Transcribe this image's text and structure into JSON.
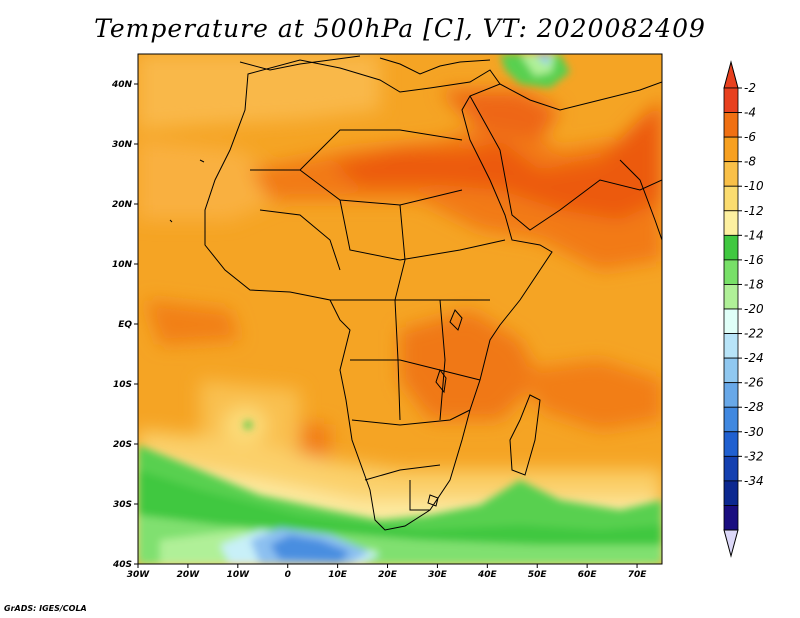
{
  "title": "Temperature at 500hPa [C], VT: 2020082409",
  "credit": "GrADS: IGES/COLA",
  "map": {
    "lon_range": [
      -30,
      75
    ],
    "lat_range": [
      -40,
      45
    ],
    "lon_ticks": [
      {
        "value": -30,
        "label": "30W"
      },
      {
        "value": -20,
        "label": "20W"
      },
      {
        "value": -10,
        "label": "10W"
      },
      {
        "value": 0,
        "label": "0"
      },
      {
        "value": 10,
        "label": "10E"
      },
      {
        "value": 20,
        "label": "20E"
      },
      {
        "value": 30,
        "label": "30E"
      },
      {
        "value": 40,
        "label": "40E"
      },
      {
        "value": 50,
        "label": "50E"
      },
      {
        "value": 60,
        "label": "60E"
      },
      {
        "value": 70,
        "label": "70E"
      }
    ],
    "lat_ticks": [
      {
        "value": 40,
        "label": "40N"
      },
      {
        "value": 30,
        "label": "30N"
      },
      {
        "value": 20,
        "label": "20N"
      },
      {
        "value": 10,
        "label": "10N"
      },
      {
        "value": 0,
        "label": "EQ"
      },
      {
        "value": -10,
        "label": "10S"
      },
      {
        "value": -20,
        "label": "20S"
      },
      {
        "value": -30,
        "label": "30S"
      },
      {
        "value": -40,
        "label": "40S"
      }
    ]
  },
  "colorbar": {
    "labels": [
      "-2",
      "-4",
      "-6",
      "-8",
      "-10",
      "-12",
      "-14",
      "-16",
      "-18",
      "-20",
      "-22",
      "-24",
      "-26",
      "-28",
      "-30",
      "-32",
      "-34"
    ],
    "colors": [
      "#e8401e",
      "#f07012",
      "#f7a020",
      "#f9c048",
      "#fbdc70",
      "#fdf0a0",
      "#40c840",
      "#78e068",
      "#b0f098",
      "#e0fff8",
      "#b8e4f8",
      "#90c8f0",
      "#68a8e8",
      "#4088e0",
      "#2060d0",
      "#1440b0",
      "#0c2890",
      "#1a0e80"
    ],
    "over_color": "#e8401e",
    "under_color": "#dcd8f8"
  }
}
